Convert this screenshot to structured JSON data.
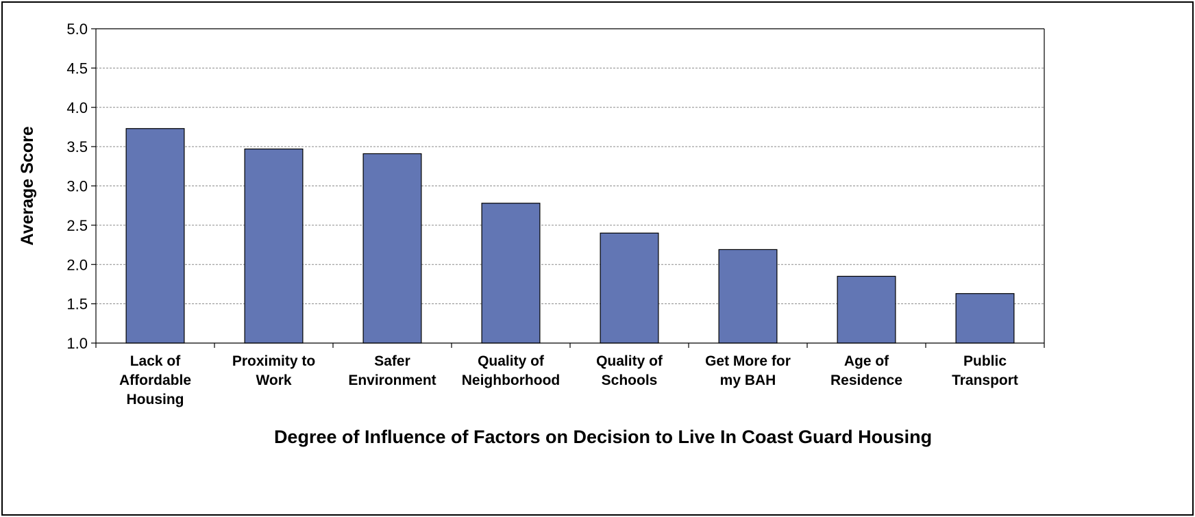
{
  "chart_data": {
    "type": "bar",
    "title": "",
    "xlabel": "Degree of Influence of Factors on Decision to Live In Coast Guard Housing",
    "ylabel": "Average Score",
    "categories": [
      [
        "Lack of",
        "Affordable",
        "Housing"
      ],
      [
        "Proximity to",
        "Work"
      ],
      [
        "Safer",
        "Environment"
      ],
      [
        "Quality of",
        "Neighborhood"
      ],
      [
        "Quality of",
        "Schools"
      ],
      [
        "Get More for",
        "my BAH"
      ],
      [
        "Age of",
        "Residence"
      ],
      [
        "Public",
        "Transport"
      ]
    ],
    "values": [
      3.73,
      3.47,
      3.41,
      2.78,
      2.4,
      2.19,
      1.85,
      1.63
    ],
    "ylim": [
      1.0,
      5.0
    ],
    "yticks": [
      "1.0",
      "1.5",
      "2.0",
      "2.5",
      "3.0",
      "3.5",
      "4.0",
      "4.5",
      "5.0"
    ],
    "grid": true,
    "bar_color": "#6276b4",
    "bar_stroke": "#000000"
  }
}
